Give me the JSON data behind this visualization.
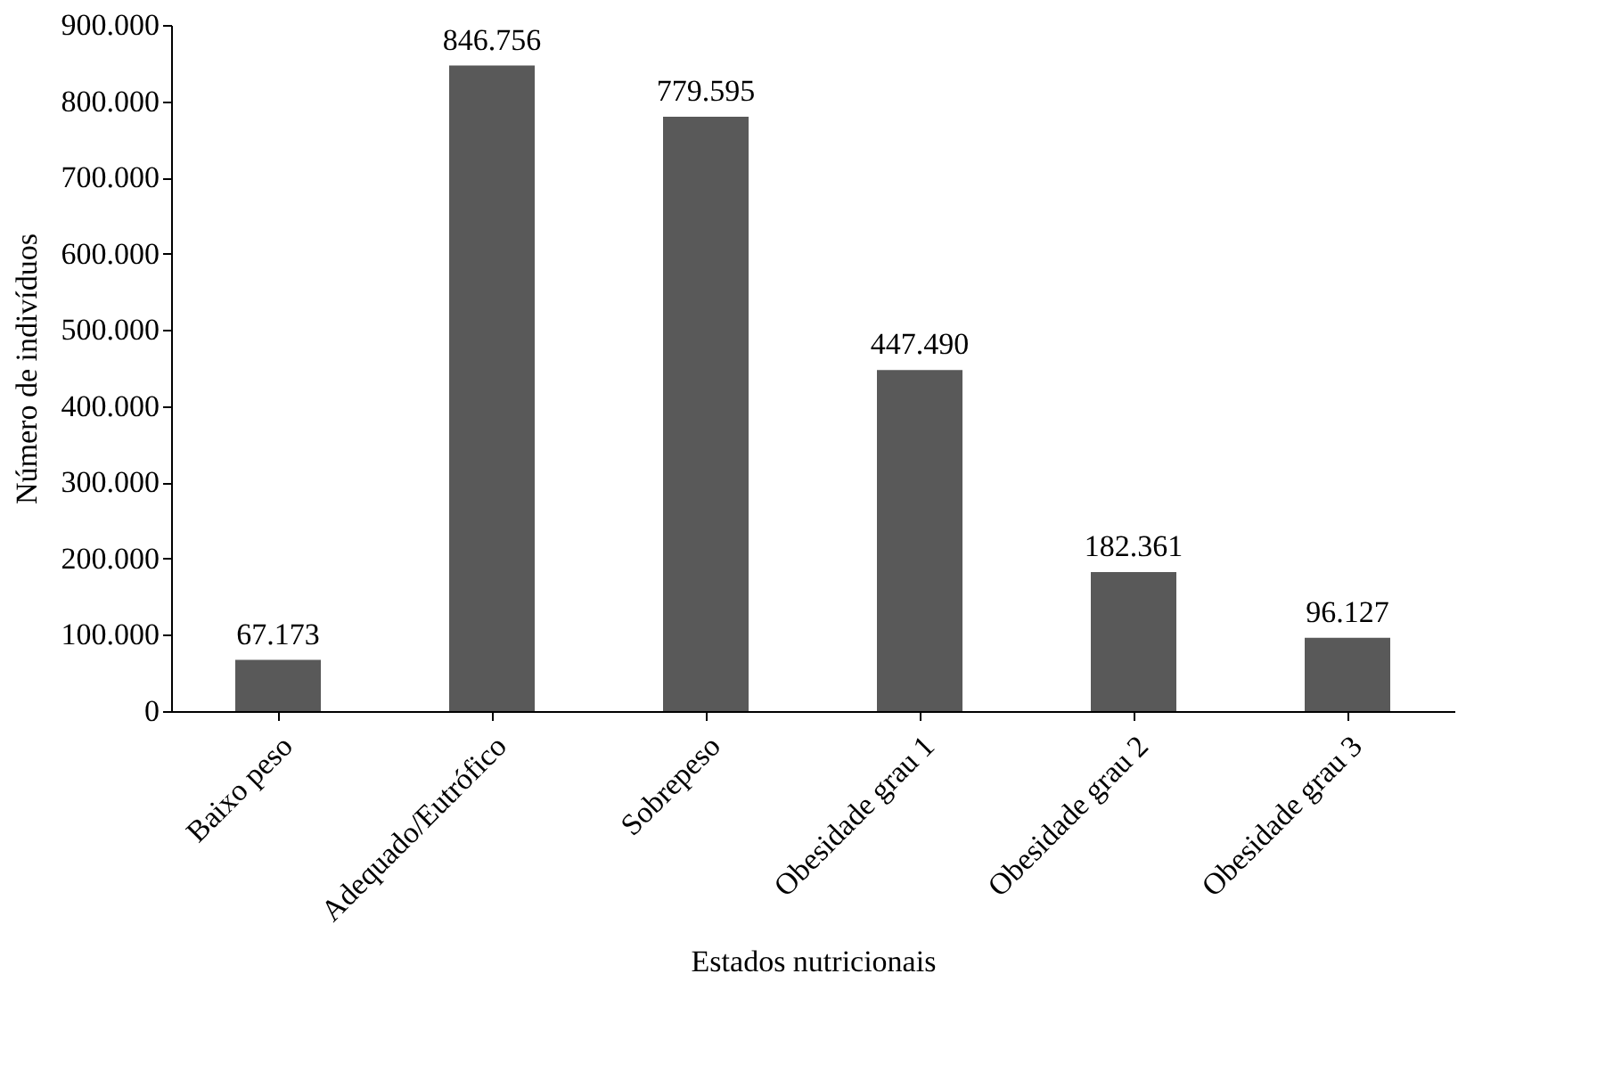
{
  "chart_data": {
    "type": "bar",
    "xlabel": "Estados nutricionais",
    "ylabel": "Número de indivíduos",
    "categories": [
      "Baixo peso",
      "Adequado/Eutrófico",
      "Sobrepeso",
      "Obesidade grau 1",
      "Obesidade grau 2",
      "Obesidade grau 3"
    ],
    "values": [
      67173,
      846756,
      779595,
      447490,
      182361,
      96127
    ],
    "value_labels": [
      "67.173",
      "846.756",
      "779.595",
      "447.490",
      "182.361",
      "96.127"
    ],
    "color": "#595959",
    "ylim": [
      0,
      900000
    ],
    "yticks": [
      {
        "value": 0,
        "label": "0"
      },
      {
        "value": 100000,
        "label": "100.000"
      },
      {
        "value": 200000,
        "label": "200.000"
      },
      {
        "value": 300000,
        "label": "300.000"
      },
      {
        "value": 400000,
        "label": "400.000"
      },
      {
        "value": 500000,
        "label": "500.000"
      },
      {
        "value": 600000,
        "label": "600.000"
      },
      {
        "value": 700000,
        "label": "700.000"
      },
      {
        "value": 800000,
        "label": "800.000"
      },
      {
        "value": 900000,
        "label": "900.000"
      }
    ],
    "grid": false
  }
}
